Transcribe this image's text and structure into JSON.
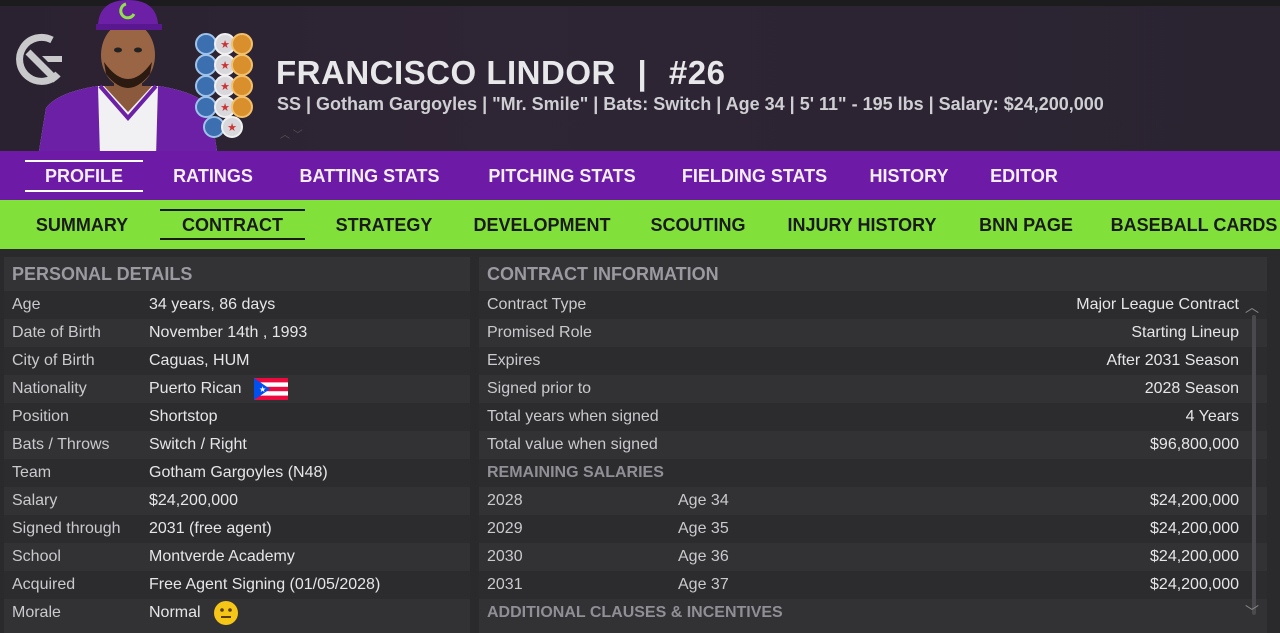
{
  "player": {
    "name": "FRANCISCO LINDOR",
    "separator": "|",
    "number": "#26",
    "subtitle": "SS | Gotham Gargoyles  |  \"Mr. Smile\" | Bats: Switch  |  Age 34  |  5' 11\" - 195 lbs  |  Salary: $24,200,000"
  },
  "colors": {
    "primary_tabs": "#6d1aa7",
    "secondary_tabs": "#82e03b",
    "background": "#2a2a2c"
  },
  "tabs_primary": [
    {
      "label": "PROFILE"
    },
    {
      "label": "RATINGS"
    },
    {
      "label": "BATTING STATS"
    },
    {
      "label": "PITCHING STATS"
    },
    {
      "label": "FIELDING STATS"
    },
    {
      "label": "HISTORY"
    },
    {
      "label": "EDITOR"
    }
  ],
  "tabs_secondary": [
    {
      "label": "SUMMARY"
    },
    {
      "label": "CONTRACT"
    },
    {
      "label": "STRATEGY"
    },
    {
      "label": "DEVELOPMENT"
    },
    {
      "label": "SCOUTING"
    },
    {
      "label": "INJURY HISTORY"
    },
    {
      "label": "BNN PAGE"
    },
    {
      "label": "BASEBALL CARDS"
    }
  ],
  "personal": {
    "title": "PERSONAL DETAILS",
    "rows": [
      {
        "label": "Age",
        "value": "34 years, 86 days"
      },
      {
        "label": "Date of Birth",
        "value": "November 14th , 1993"
      },
      {
        "label": "City of Birth",
        "value": "Caguas, HUM"
      },
      {
        "label": "Nationality",
        "value": "Puerto Rican"
      },
      {
        "label": "Position",
        "value": "Shortstop"
      },
      {
        "label": "Bats / Throws",
        "value": "Switch / Right"
      },
      {
        "label": "Team",
        "value": "Gotham Gargoyles (N48)"
      },
      {
        "label": "Salary",
        "value": "$24,200,000"
      },
      {
        "label": "Signed through",
        "value": "2031 (free agent)"
      },
      {
        "label": "School",
        "value": "Montverde Academy"
      },
      {
        "label": "Acquired",
        "value": "Free Agent Signing (01/05/2028)"
      },
      {
        "label": "Morale",
        "value": "Normal"
      }
    ]
  },
  "contract": {
    "title": "CONTRACT INFORMATION",
    "rows": [
      {
        "label": "Contract Type",
        "value": "Major League Contract"
      },
      {
        "label": "Promised Role",
        "value": "Starting Lineup"
      },
      {
        "label": "Expires",
        "value": "After 2031 Season"
      },
      {
        "label": "Signed prior to",
        "value": "2028 Season"
      },
      {
        "label": "Total years when signed",
        "value": "4 Years"
      },
      {
        "label": "Total value when signed",
        "value": "$96,800,000"
      }
    ],
    "remaining_title": "REMAINING SALARIES",
    "salaries": [
      {
        "year": "2028",
        "age": "Age 34",
        "amount": "$24,200,000"
      },
      {
        "year": "2029",
        "age": "Age 35",
        "amount": "$24,200,000"
      },
      {
        "year": "2030",
        "age": "Age 36",
        "amount": "$24,200,000"
      },
      {
        "year": "2031",
        "age": "Age 37",
        "amount": "$24,200,000"
      }
    ],
    "clauses_title": "ADDITIONAL CLAUSES & INCENTIVES"
  }
}
